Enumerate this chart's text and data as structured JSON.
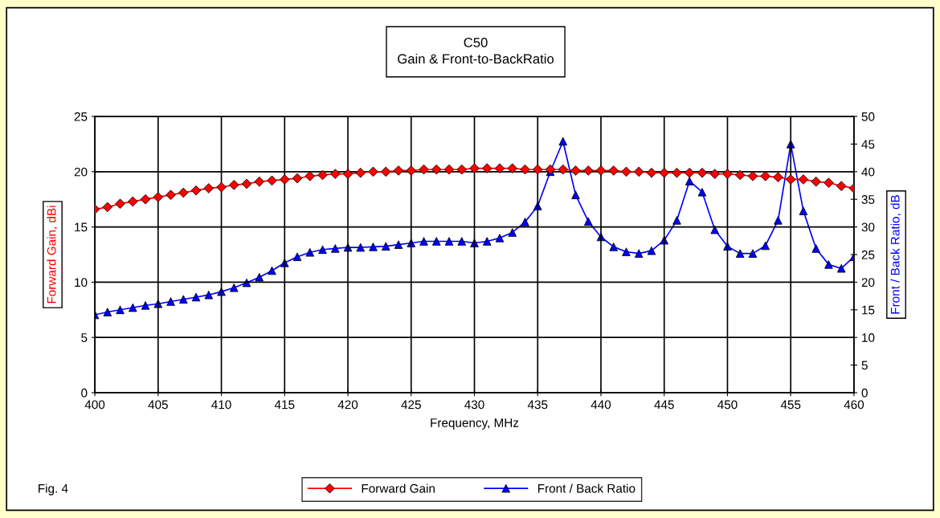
{
  "chart_data": {
    "type": "line",
    "title": "C50\nGain & Front-to-BackRatio",
    "xlabel": "Frequency, MHz",
    "ylabel": "Forward Gain, dBi",
    "y2label": "Front / Back Ratio, dB",
    "x": [
      400,
      401,
      402,
      403,
      404,
      405,
      406,
      407,
      408,
      409,
      410,
      411,
      412,
      413,
      414,
      415,
      416,
      417,
      418,
      419,
      420,
      421,
      422,
      423,
      424,
      425,
      426,
      427,
      428,
      429,
      430,
      431,
      432,
      433,
      434,
      435,
      436,
      437,
      438,
      439,
      440,
      441,
      442,
      443,
      444,
      445,
      446,
      447,
      448,
      449,
      450,
      451,
      452,
      453,
      454,
      455,
      456,
      457,
      458,
      459,
      460
    ],
    "series": [
      {
        "name": "Forward Gain",
        "color": "#ff0000",
        "marker": "diamond",
        "values": [
          16.6,
          16.8,
          17.1,
          17.3,
          17.5,
          17.7,
          17.9,
          18.1,
          18.3,
          18.5,
          18.6,
          18.8,
          18.9,
          19.1,
          19.2,
          19.3,
          19.4,
          19.6,
          19.7,
          19.8,
          19.8,
          19.9,
          20.0,
          20.0,
          20.1,
          20.1,
          20.2,
          20.2,
          20.2,
          20.2,
          20.3,
          20.3,
          20.3,
          20.3,
          20.2,
          20.2,
          20.2,
          20.2,
          20.1,
          20.1,
          20.1,
          20.1,
          20.0,
          20.0,
          19.9,
          19.9,
          19.9,
          19.9,
          19.9,
          19.8,
          19.8,
          19.7,
          19.6,
          19.6,
          19.5,
          19.3,
          19.3,
          19.1,
          19.0,
          18.7,
          18.5
        ]
      },
      {
        "name": "Front / Back Ratio",
        "color": "#0000ff",
        "marker": "triangle",
        "axis": "y2",
        "values": [
          14.1,
          14.6,
          15.0,
          15.4,
          15.8,
          16.1,
          16.5,
          16.9,
          17.3,
          17.7,
          18.3,
          19.0,
          19.9,
          20.9,
          22.1,
          23.5,
          24.6,
          25.4,
          25.9,
          26.1,
          26.3,
          26.3,
          26.4,
          26.5,
          26.8,
          27.1,
          27.4,
          27.4,
          27.4,
          27.4,
          27.1,
          27.4,
          28.0,
          29.0,
          30.9,
          33.8,
          40.0,
          45.5,
          35.8,
          31.0,
          28.2,
          26.4,
          25.5,
          25.2,
          25.7,
          27.6,
          31.2,
          38.3,
          36.3,
          29.5,
          26.5,
          25.2,
          25.2,
          26.6,
          31.2,
          45.0,
          32.9,
          26.1,
          23.2,
          22.5,
          24.6
        ]
      }
    ],
    "xlim": [
      400,
      460
    ],
    "xticks": [
      400,
      405,
      410,
      415,
      420,
      425,
      430,
      435,
      440,
      445,
      450,
      455,
      460
    ],
    "ylim": [
      0,
      25
    ],
    "yticks": [
      0,
      5,
      10,
      15,
      20,
      25
    ],
    "y2lim": [
      0,
      50
    ],
    "y2ticks": [
      0,
      5,
      10,
      15,
      20,
      25,
      30,
      35,
      40,
      45,
      50
    ],
    "grid": true,
    "legend": "bottom",
    "line_style": "solid",
    "annotations": [
      "Fig. 4"
    ]
  }
}
